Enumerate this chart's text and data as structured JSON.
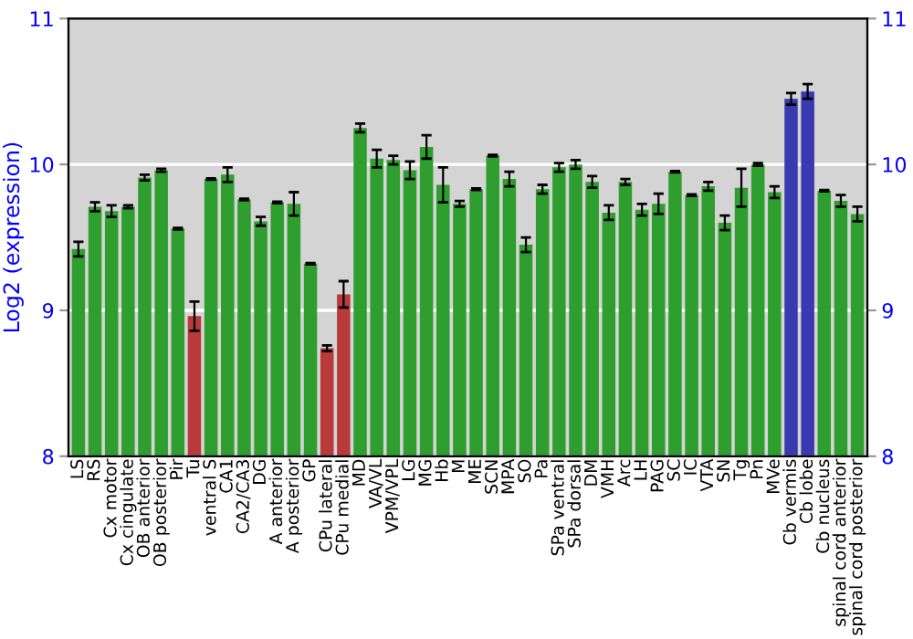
{
  "chart_data": {
    "type": "bar",
    "ylabel": "Log2 (expression)",
    "categories": [
      "LS",
      "RS",
      "Cx motor",
      "Cx cingulate",
      "OB anterior",
      "OB posterior",
      "Pir",
      "Tu",
      "ventral S",
      "CA1",
      "CA2/CA3",
      "DG",
      "A anterior",
      "A posterior",
      "GP",
      "CPu lateral",
      "CPu medial",
      "MD",
      "VA/VL",
      "VPM/VPL",
      "LG",
      "MG",
      "Hb",
      "M",
      "ME",
      "SCN",
      "MPA",
      "SO",
      "Pa",
      "SPa ventral",
      "SPa dorsal",
      "DM",
      "VMH",
      "Arc",
      "LH",
      "PAG",
      "SC",
      "IC",
      "VTA",
      "SN",
      "Tg",
      "Pn",
      "MVe",
      "Cb vermis",
      "Cb lobe",
      "Cb nucleus",
      "spinal cord anterior",
      "spinal cord posterior"
    ],
    "values": [
      9.42,
      9.71,
      9.68,
      9.71,
      9.91,
      9.96,
      9.56,
      8.96,
      9.9,
      9.93,
      9.76,
      9.61,
      9.74,
      9.73,
      9.32,
      8.74,
      9.11,
      10.25,
      10.04,
      10.03,
      9.96,
      10.12,
      9.86,
      9.73,
      9.83,
      10.06,
      9.9,
      9.45,
      9.83,
      9.98,
      10.0,
      9.88,
      9.67,
      9.88,
      9.69,
      9.73,
      9.95,
      9.79,
      9.85,
      9.6,
      9.84,
      10.0,
      9.81,
      10.45,
      10.5,
      9.82,
      9.75,
      9.66
    ],
    "errors": [
      0.05,
      0.03,
      0.04,
      0.01,
      0.02,
      0.01,
      0.005,
      0.1,
      0.005,
      0.05,
      0.005,
      0.03,
      0.005,
      0.08,
      0.005,
      0.02,
      0.09,
      0.03,
      0.06,
      0.03,
      0.06,
      0.08,
      0.12,
      0.02,
      0.005,
      0.005,
      0.05,
      0.05,
      0.03,
      0.03,
      0.03,
      0.04,
      0.05,
      0.02,
      0.04,
      0.07,
      0.005,
      0.005,
      0.03,
      0.05,
      0.13,
      0.01,
      0.04,
      0.04,
      0.05,
      0.005,
      0.04,
      0.05
    ],
    "colors": [
      "#2e9e2e",
      "#2e9e2e",
      "#2e9e2e",
      "#2e9e2e",
      "#2e9e2e",
      "#2e9e2e",
      "#2e9e2e",
      "#b83a3a",
      "#2e9e2e",
      "#2e9e2e",
      "#2e9e2e",
      "#2e9e2e",
      "#2e9e2e",
      "#2e9e2e",
      "#2e9e2e",
      "#b83a3a",
      "#b83a3a",
      "#2e9e2e",
      "#2e9e2e",
      "#2e9e2e",
      "#2e9e2e",
      "#2e9e2e",
      "#2e9e2e",
      "#2e9e2e",
      "#2e9e2e",
      "#2e9e2e",
      "#2e9e2e",
      "#2e9e2e",
      "#2e9e2e",
      "#2e9e2e",
      "#2e9e2e",
      "#2e9e2e",
      "#2e9e2e",
      "#2e9e2e",
      "#2e9e2e",
      "#2e9e2e",
      "#2e9e2e",
      "#2e9e2e",
      "#2e9e2e",
      "#2e9e2e",
      "#2e9e2e",
      "#2e9e2e",
      "#2e9e2e",
      "#3a3ab0",
      "#3a3ab0",
      "#2e9e2e",
      "#2e9e2e",
      "#2e9e2e"
    ],
    "ylim": [
      8,
      11
    ],
    "yticks": [
      8,
      9,
      10,
      11
    ],
    "y2lim": [
      8,
      11
    ],
    "y2ticks": [
      8,
      9,
      10,
      11
    ],
    "grid": "y"
  }
}
